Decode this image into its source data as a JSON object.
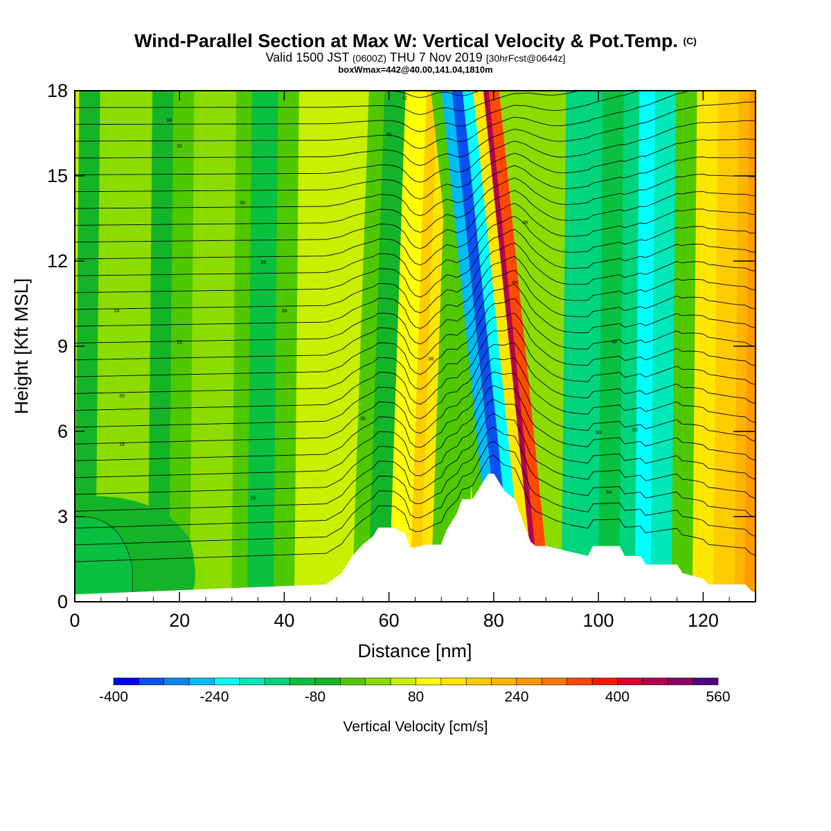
{
  "header": {
    "title_main": "Wind-Parallel Section at Max W: Vertical Velocity & Pot.Temp.",
    "title_suffix": "(C)",
    "valid_prefix": "Valid 1500 JST",
    "valid_utc": "(0600Z)",
    "valid_date": "THU 7 Nov 2019",
    "valid_fcst": "[30hrFcst@0644z]",
    "boxinfo": "boxWmax=442@40.00,141.04,1810m"
  },
  "colorbar": {
    "title": "Vertical Velocity [cm/s]",
    "tick_labels": [
      "-400",
      "-240",
      "-80",
      "80",
      "240",
      "400",
      "560"
    ],
    "bounds": [
      -400,
      560
    ],
    "step": 40,
    "colors": [
      "#0000ff",
      "#0a50f0",
      "#0a86f0",
      "#00bcf8",
      "#00ffff",
      "#00e8b8",
      "#00d47c",
      "#0ac040",
      "#14b428",
      "#50c800",
      "#8cdc00",
      "#c8f000",
      "#ffff00",
      "#ffe600",
      "#ffcc00",
      "#ffb400",
      "#ff9a00",
      "#ff7800",
      "#ff4800",
      "#ff1400",
      "#dc0032",
      "#b40050",
      "#8c0064",
      "#500082"
    ]
  },
  "chart_data": {
    "type": "heatmap",
    "xlabel": "Distance [nm]",
    "ylabel": "Height [Kft MSL]",
    "xlim": [
      0,
      130
    ],
    "ylim": [
      0,
      18
    ],
    "x_ticks": [
      "0",
      "20",
      "40",
      "60",
      "80",
      "100",
      "120"
    ],
    "y_ticks": [
      "0",
      "3",
      "6",
      "9",
      "12",
      "15",
      "18"
    ],
    "colorbar_label": "Vertical Velocity [cm/s]",
    "z_range": [
      -400,
      560
    ],
    "terrain_height_kft": {
      "x": [
        0,
        48,
        51,
        53,
        55,
        57,
        58,
        60,
        61,
        63,
        64,
        65,
        67,
        70,
        71,
        73,
        74,
        76,
        78,
        79,
        80,
        81,
        82,
        84,
        85,
        86,
        87,
        88,
        90,
        98,
        99,
        104,
        105,
        108,
        109,
        115,
        116,
        120,
        121,
        123,
        124,
        128,
        129,
        130
      ],
      "y": [
        0.25,
        0.6,
        1.0,
        1.6,
        2.0,
        2.3,
        2.6,
        2.6,
        2.6,
        2.4,
        1.9,
        1.9,
        2.0,
        2.0,
        2.5,
        3.1,
        3.6,
        3.6,
        4.2,
        4.5,
        4.5,
        4.2,
        3.9,
        3.6,
        3.1,
        2.6,
        2.1,
        1.95,
        1.95,
        1.6,
        1.95,
        1.95,
        1.6,
        1.6,
        1.3,
        1.3,
        1.0,
        0.8,
        0.6,
        0.6,
        0.6,
        0.6,
        0.4,
        0.3
      ]
    },
    "vertical_velocity_bands_cm_s": {
      "x_nm": [
        0,
        4,
        9,
        14,
        18,
        22,
        26,
        30,
        33,
        38,
        42,
        46,
        50,
        53,
        56,
        60,
        64,
        66,
        68,
        72,
        75,
        78,
        80,
        82,
        84,
        86,
        88,
        89,
        91,
        93,
        96,
        100,
        104,
        107,
        110,
        114,
        118,
        122,
        126,
        128,
        130
      ],
      "w": [
        -80,
        -40,
        40,
        -40,
        -80,
        20,
        40,
        20,
        -80,
        -120,
        40,
        40,
        80,
        40,
        -120,
        0,
        200,
        160,
        80,
        -120,
        40,
        160,
        -200,
        -360,
        -320,
        -120,
        400,
        520,
        120,
        -80,
        -200,
        -120,
        -80,
        -200,
        -240,
        -120,
        60,
        200,
        160,
        240,
        240
      ]
    },
    "theta_contour_labels": [
      "16",
      "18",
      "20",
      "22",
      "24",
      "26",
      "28",
      "30",
      "32",
      "34",
      "36",
      "38",
      "40",
      "42",
      "44",
      "46",
      "48",
      "50",
      "52",
      "54"
    ]
  }
}
